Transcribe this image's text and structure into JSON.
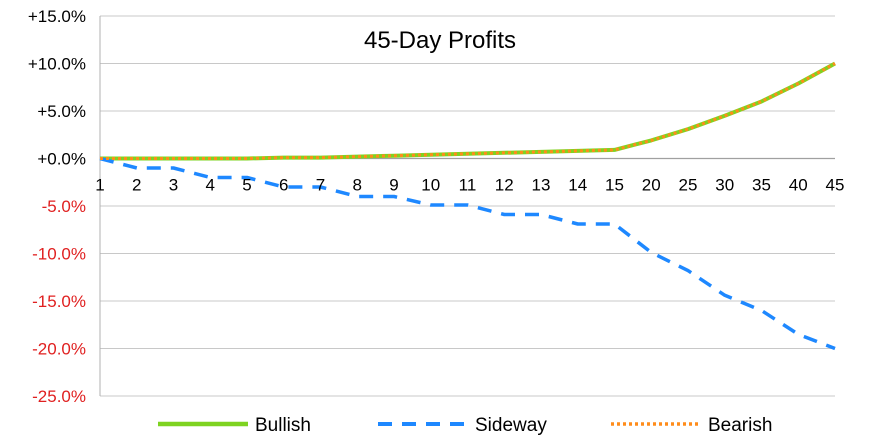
{
  "chart_data": {
    "type": "line",
    "title": "45-Day Profits",
    "xlabel": "",
    "ylabel": "",
    "categories": [
      "1",
      "2",
      "3",
      "4",
      "5",
      "6",
      "7",
      "8",
      "9",
      "10",
      "11",
      "12",
      "13",
      "14",
      "15",
      "20",
      "25",
      "30",
      "35",
      "40",
      "45"
    ],
    "yticks": [
      "+15.0%",
      "+10.0%",
      "+5.0%",
      "+0.0%",
      "-5.0%",
      "-10.0%",
      "-15.0%",
      "-20.0%",
      "-25.0%"
    ],
    "ylim": [
      -25,
      15
    ],
    "grid": true,
    "legend_position": "bottom",
    "series": [
      {
        "name": "Bullish",
        "color": "#7ed321",
        "style": "solid",
        "values": [
          0,
          0,
          0,
          0,
          0,
          0.1,
          0.1,
          0.2,
          0.3,
          0.4,
          0.5,
          0.6,
          0.7,
          0.8,
          0.9,
          1.9,
          3.1,
          4.5,
          6.0,
          7.9,
          10.0
        ]
      },
      {
        "name": "Sideway",
        "color": "#1e88ff",
        "style": "dashed",
        "values": [
          0,
          -1.0,
          -1.0,
          -2.0,
          -2.0,
          -3.0,
          -3.0,
          -4.0,
          -4.0,
          -4.9,
          -4.9,
          -5.9,
          -5.9,
          -6.9,
          -6.9,
          -9.9,
          -11.8,
          -14.4,
          -16.0,
          -18.5,
          -20.0
        ]
      },
      {
        "name": "Bearish",
        "color": "#ff8c1a",
        "style": "dotted",
        "values": [
          0,
          0,
          0,
          0,
          0,
          0.1,
          0.1,
          0.2,
          0.3,
          0.4,
          0.5,
          0.6,
          0.7,
          0.8,
          0.9,
          1.9,
          3.1,
          4.5,
          6.0,
          7.9,
          10.0
        ]
      }
    ],
    "colors": {
      "positive_tick": "#000000",
      "negative_tick": "#e02020"
    }
  }
}
